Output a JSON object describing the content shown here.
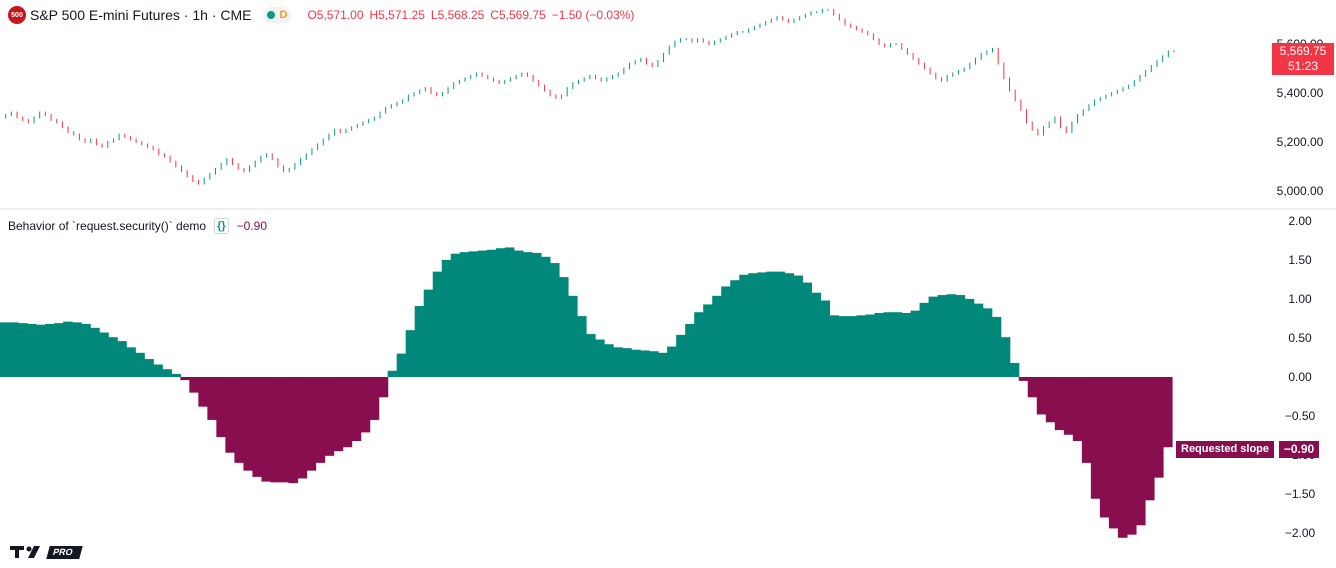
{
  "colors": {
    "bull": "#089981",
    "bear": "#f23645",
    "positive_fill": "#00897b",
    "negative_fill": "#880e4f",
    "symbol_badge": "#c4161c",
    "market_dot": "#089981",
    "d_badge": "#ff9800",
    "grid_text": "#131722"
  },
  "header": {
    "symbol_badge_text": "500",
    "symbol": "S&P 500 E-mini Futures · 1h · CME",
    "market_status_icon": "green-dot-icon",
    "d_badge": "D",
    "ohlc": {
      "o_label": "O",
      "o_value": "5,571.00",
      "h_label": "H",
      "h_value": "5,571.25",
      "l_label": "L",
      "l_value": "5,568.25",
      "c_label": "C",
      "c_value": "5,569.75",
      "change": "−1.50 (−0.03%)"
    }
  },
  "price_tag": {
    "price": "5,569.75",
    "countdown": "51:23"
  },
  "indicator": {
    "title": "Behavior of `request.security()` demo",
    "braces_icon": "{}",
    "value": "−0.90",
    "series_label": "Requested slope",
    "tag_value": "−0.90"
  },
  "logo": {
    "tv_text": "TV",
    "pro_text": "PRO"
  },
  "chart_data": [
    {
      "type": "candlestick",
      "title": "",
      "yticks": [
        "5,600.00",
        "5,400.00",
        "5,200.00",
        "5,000.00"
      ],
      "ytick_values": [
        5600,
        5400,
        5200,
        5000
      ],
      "ylim": [
        4930,
        5780
      ],
      "close": [
        5300,
        5310,
        5320,
        5300,
        5290,
        5280,
        5300,
        5320,
        5310,
        5290,
        5280,
        5260,
        5240,
        5230,
        5210,
        5200,
        5210,
        5190,
        5180,
        5200,
        5210,
        5230,
        5220,
        5210,
        5200,
        5190,
        5180,
        5170,
        5150,
        5140,
        5120,
        5100,
        5080,
        5060,
        5040,
        5030,
        5050,
        5070,
        5090,
        5110,
        5130,
        5110,
        5090,
        5080,
        5100,
        5120,
        5140,
        5150,
        5130,
        5100,
        5080,
        5090,
        5110,
        5130,
        5150,
        5170,
        5190,
        5210,
        5230,
        5250,
        5240,
        5250,
        5260,
        5270,
        5280,
        5290,
        5300,
        5320,
        5340,
        5350,
        5360,
        5370,
        5390,
        5400,
        5410,
        5420,
        5400,
        5390,
        5400,
        5420,
        5440,
        5450,
        5460,
        5470,
        5480,
        5470,
        5460,
        5450,
        5440,
        5450,
        5460,
        5470,
        5480,
        5470,
        5450,
        5430,
        5410,
        5390,
        5380,
        5390,
        5420,
        5440,
        5450,
        5460,
        5470,
        5460,
        5450,
        5460,
        5470,
        5480,
        5500,
        5520,
        5530,
        5540,
        5520,
        5510,
        5530,
        5560,
        5590,
        5610,
        5620,
        5620,
        5610,
        5620,
        5610,
        5600,
        5610,
        5620,
        5630,
        5640,
        5650,
        5650,
        5660,
        5670,
        5680,
        5690,
        5700,
        5710,
        5700,
        5690,
        5700,
        5710,
        5720,
        5730,
        5730,
        5740,
        5740,
        5720,
        5700,
        5680,
        5670,
        5660,
        5650,
        5640,
        5620,
        5600,
        5590,
        5600,
        5600,
        5580,
        5560,
        5540,
        5520,
        5500,
        5480,
        5460,
        5450,
        5470,
        5480,
        5490,
        5500,
        5520,
        5540,
        5560,
        5570,
        5580,
        5520,
        5460,
        5410,
        5370,
        5330,
        5280,
        5250,
        5230,
        5260,
        5280,
        5300,
        5260,
        5240,
        5280,
        5310,
        5330,
        5350,
        5370,
        5380,
        5390,
        5400,
        5410,
        5420,
        5430,
        5450,
        5470,
        5490,
        5510,
        5530,
        5550,
        5570,
        5569.75
      ]
    },
    {
      "type": "area",
      "title": "",
      "series": [
        {
          "name": "Requested slope",
          "values": [
            0.7,
            0.7,
            0.69,
            0.68,
            0.67,
            0.68,
            0.69,
            0.71,
            0.7,
            0.68,
            0.63,
            0.57,
            0.51,
            0.46,
            0.38,
            0.31,
            0.23,
            0.16,
            0.1,
            0.04,
            -0.04,
            -0.2,
            -0.38,
            -0.55,
            -0.77,
            -0.97,
            -1.1,
            -1.2,
            -1.28,
            -1.34,
            -1.35,
            -1.35,
            -1.36,
            -1.3,
            -1.2,
            -1.1,
            -1.01,
            -0.95,
            -0.9,
            -0.82,
            -0.71,
            -0.55,
            -0.26,
            0.08,
            0.3,
            0.6,
            0.91,
            1.12,
            1.35,
            1.5,
            1.58,
            1.6,
            1.61,
            1.62,
            1.63,
            1.65,
            1.66,
            1.62,
            1.6,
            1.59,
            1.54,
            1.46,
            1.28,
            1.04,
            0.78,
            0.55,
            0.48,
            0.42,
            0.38,
            0.37,
            0.35,
            0.34,
            0.33,
            0.31,
            0.39,
            0.54,
            0.68,
            0.83,
            0.93,
            1.04,
            1.16,
            1.24,
            1.31,
            1.33,
            1.34,
            1.35,
            1.35,
            1.33,
            1.3,
            1.21,
            1.08,
            0.98,
            0.79,
            0.78,
            0.78,
            0.79,
            0.8,
            0.82,
            0.83,
            0.83,
            0.82,
            0.85,
            0.95,
            1.03,
            1.05,
            1.06,
            1.05,
            1.0,
            0.94,
            0.88,
            0.77,
            0.51,
            0.18,
            -0.05,
            -0.26,
            -0.48,
            -0.58,
            -0.68,
            -0.74,
            -0.82,
            -1.1,
            -1.56,
            -1.8,
            -1.94,
            -2.06,
            -2.02,
            -1.9,
            -1.58,
            -1.29,
            -0.9
          ]
        }
      ],
      "yticks": [
        "2.00",
        "1.50",
        "1.00",
        "0.50",
        "0.00",
        "−0.50",
        "−1.00",
        "−1.50",
        "−2.00"
      ],
      "ytick_values": [
        2,
        1.5,
        1,
        0.5,
        0,
        -0.5,
        -1,
        -1.5,
        -2
      ],
      "ylim": [
        -2.05,
        2.05
      ],
      "baseline": 0
    }
  ]
}
